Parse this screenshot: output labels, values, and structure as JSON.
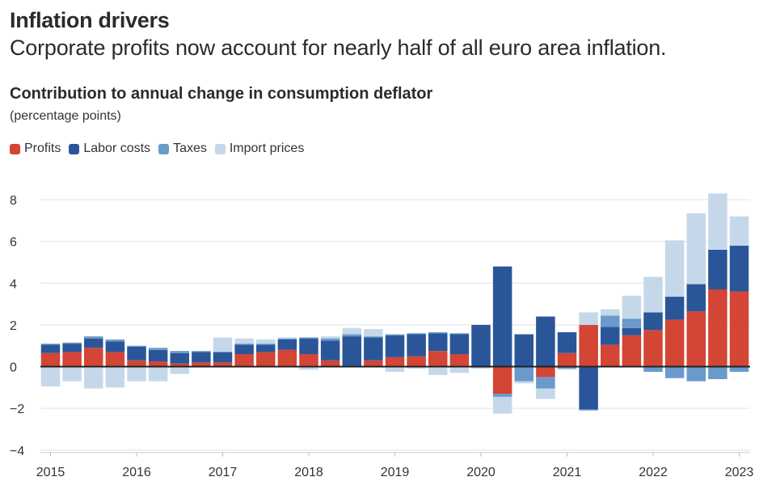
{
  "title": "Inflation drivers",
  "subtitle": "Corporate profits now account for nearly half of all euro area inflation.",
  "colors": {
    "profits": "#d34535",
    "labor": "#2a5699",
    "taxes": "#6a9acb",
    "import": "#c5d8ea",
    "grid": "#e3e3e3",
    "zero": "#222222"
  },
  "chart_data": {
    "type": "bar",
    "stacked": true,
    "title": "Contribution to annual change in consumption deflator",
    "unit": "(percentage points)",
    "legend_position": "top-left",
    "grid": true,
    "ylim": [
      -4,
      8
    ],
    "yticks": [
      "8",
      "6",
      "4",
      "2",
      "0",
      "−2",
      "−4"
    ],
    "ytick_values": [
      8,
      6,
      4,
      2,
      0,
      -2,
      -4
    ],
    "xticks": [
      "2015",
      "2016",
      "2017",
      "2018",
      "2019",
      "2020",
      "2021",
      "2022",
      "2023"
    ],
    "categories": [
      "2015 Q1",
      "2015 Q2",
      "2015 Q3",
      "2015 Q4",
      "2016 Q1",
      "2016 Q2",
      "2016 Q3",
      "2016 Q4",
      "2017 Q1",
      "2017 Q2",
      "2017 Q3",
      "2017 Q4",
      "2018 Q1",
      "2018 Q2",
      "2018 Q3",
      "2018 Q4",
      "2019 Q1",
      "2019 Q2",
      "2019 Q3",
      "2019 Q4",
      "2020 Q1",
      "2020 Q2",
      "2020 Q3",
      "2020 Q4",
      "2021 Q1",
      "2021 Q2",
      "2021 Q3",
      "2021 Q4",
      "2022 Q1",
      "2022 Q2",
      "2022 Q3",
      "2022 Q4",
      "2023 Q1"
    ],
    "series": [
      {
        "name": "Profits",
        "key": "profits",
        "values": [
          0.65,
          0.7,
          0.9,
          0.7,
          0.3,
          0.25,
          0.15,
          0.2,
          0.2,
          0.6,
          0.7,
          0.8,
          0.6,
          0.3,
          0.0,
          0.3,
          0.45,
          0.5,
          0.75,
          0.6,
          0.0,
          -1.3,
          0.0,
          -0.5,
          0.65,
          2.0,
          1.05,
          1.5,
          1.75,
          2.25,
          2.65,
          3.7,
          3.6
        ]
      },
      {
        "name": "Labor costs",
        "key": "labor",
        "values": [
          0.4,
          0.4,
          0.45,
          0.5,
          0.65,
          0.55,
          0.5,
          0.5,
          0.5,
          0.45,
          0.35,
          0.5,
          0.75,
          0.95,
          1.45,
          1.1,
          1.05,
          1.05,
          0.85,
          0.95,
          2.0,
          4.8,
          1.55,
          2.4,
          1.0,
          -2.05,
          0.85,
          0.35,
          0.85,
          1.1,
          1.3,
          1.9,
          2.2
        ]
      },
      {
        "name": "Taxes",
        "key": "taxes",
        "values": [
          0.05,
          0.05,
          0.1,
          0.1,
          0.05,
          0.1,
          0.1,
          0.05,
          0.0,
          0.05,
          0.05,
          0.05,
          0.05,
          0.1,
          0.1,
          0.05,
          0.05,
          0.05,
          0.05,
          0.05,
          -0.05,
          -0.15,
          -0.7,
          -0.55,
          -0.1,
          -0.05,
          0.55,
          0.45,
          -0.25,
          -0.55,
          -0.7,
          -0.6,
          -0.25
        ]
      },
      {
        "name": "Import prices",
        "key": "import",
        "values": [
          -0.95,
          -0.7,
          -1.05,
          -1.0,
          -0.7,
          -0.7,
          -0.35,
          0.0,
          0.7,
          0.25,
          0.2,
          0.05,
          -0.15,
          0.1,
          0.3,
          0.35,
          -0.25,
          -0.1,
          -0.4,
          -0.3,
          -0.05,
          -0.8,
          -0.1,
          -0.5,
          -0.05,
          0.6,
          0.3,
          1.1,
          1.7,
          2.7,
          3.4,
          2.7,
          1.4
        ]
      }
    ]
  }
}
